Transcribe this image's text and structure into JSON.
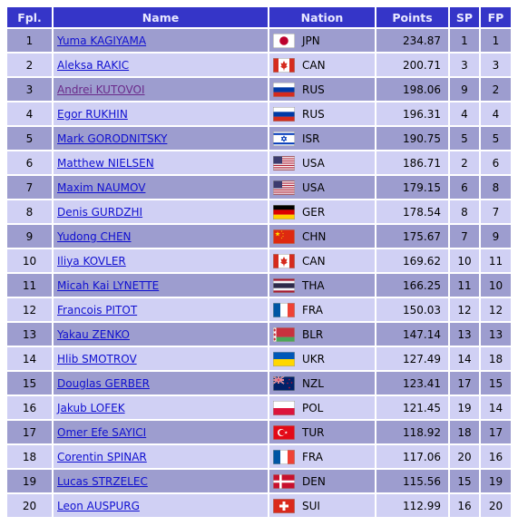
{
  "table": {
    "header": [
      "Fpl.",
      "Name",
      "Nation",
      "Points",
      "SP",
      "FP"
    ],
    "rows": [
      [
        1,
        "Yuma KAGIYAMA",
        "JPN",
        234.87,
        1,
        1
      ],
      [
        2,
        "Aleksa RAKIC",
        "CAN",
        200.71,
        3,
        3
      ],
      [
        3,
        "Andrei KUTOVOI",
        "RUS",
        198.06,
        9,
        2
      ],
      [
        4,
        "Egor RUKHIN",
        "RUS",
        196.31,
        4,
        4
      ],
      [
        5,
        "Mark GORODNITSKY",
        "ISR",
        190.75,
        5,
        5
      ],
      [
        6,
        "Matthew NIELSEN",
        "USA",
        186.71,
        2,
        6
      ],
      [
        7,
        "Maxim NAUMOV",
        "USA",
        179.15,
        6,
        8
      ],
      [
        8,
        "Denis GURDZHI",
        "GER",
        178.54,
        8,
        7
      ],
      [
        9,
        "Yudong CHEN",
        "CHN",
        175.67,
        7,
        9
      ],
      [
        10,
        "Iliya KOVLER",
        "CAN",
        169.62,
        10,
        11
      ],
      [
        11,
        "Micah Kai LYNETTE",
        "THA",
        166.25,
        11,
        10
      ],
      [
        12,
        "Francois PITOT",
        "FRA",
        150.03,
        12,
        12
      ],
      [
        13,
        "Yakau ZENKO",
        "BLR",
        147.14,
        13,
        13
      ],
      [
        14,
        "Hlib SMOTROV",
        "UKR",
        127.49,
        14,
        18
      ],
      [
        15,
        "Douglas GERBER",
        "NZL",
        123.41,
        17,
        15
      ],
      [
        16,
        "Jakub LOFEK",
        "POL",
        121.45,
        19,
        14
      ],
      [
        17,
        "Omer Efe SAYICI",
        "TUR",
        118.92,
        18,
        17
      ],
      [
        18,
        "Corentin SPINAR",
        "FRA",
        117.06,
        20,
        16
      ],
      [
        19,
        "Lucas STRZELEC",
        "DEN",
        115.56,
        15,
        19
      ],
      [
        20,
        "Leon AUSPURG",
        "SUI",
        112.99,
        16,
        20
      ]
    ]
  }
}
